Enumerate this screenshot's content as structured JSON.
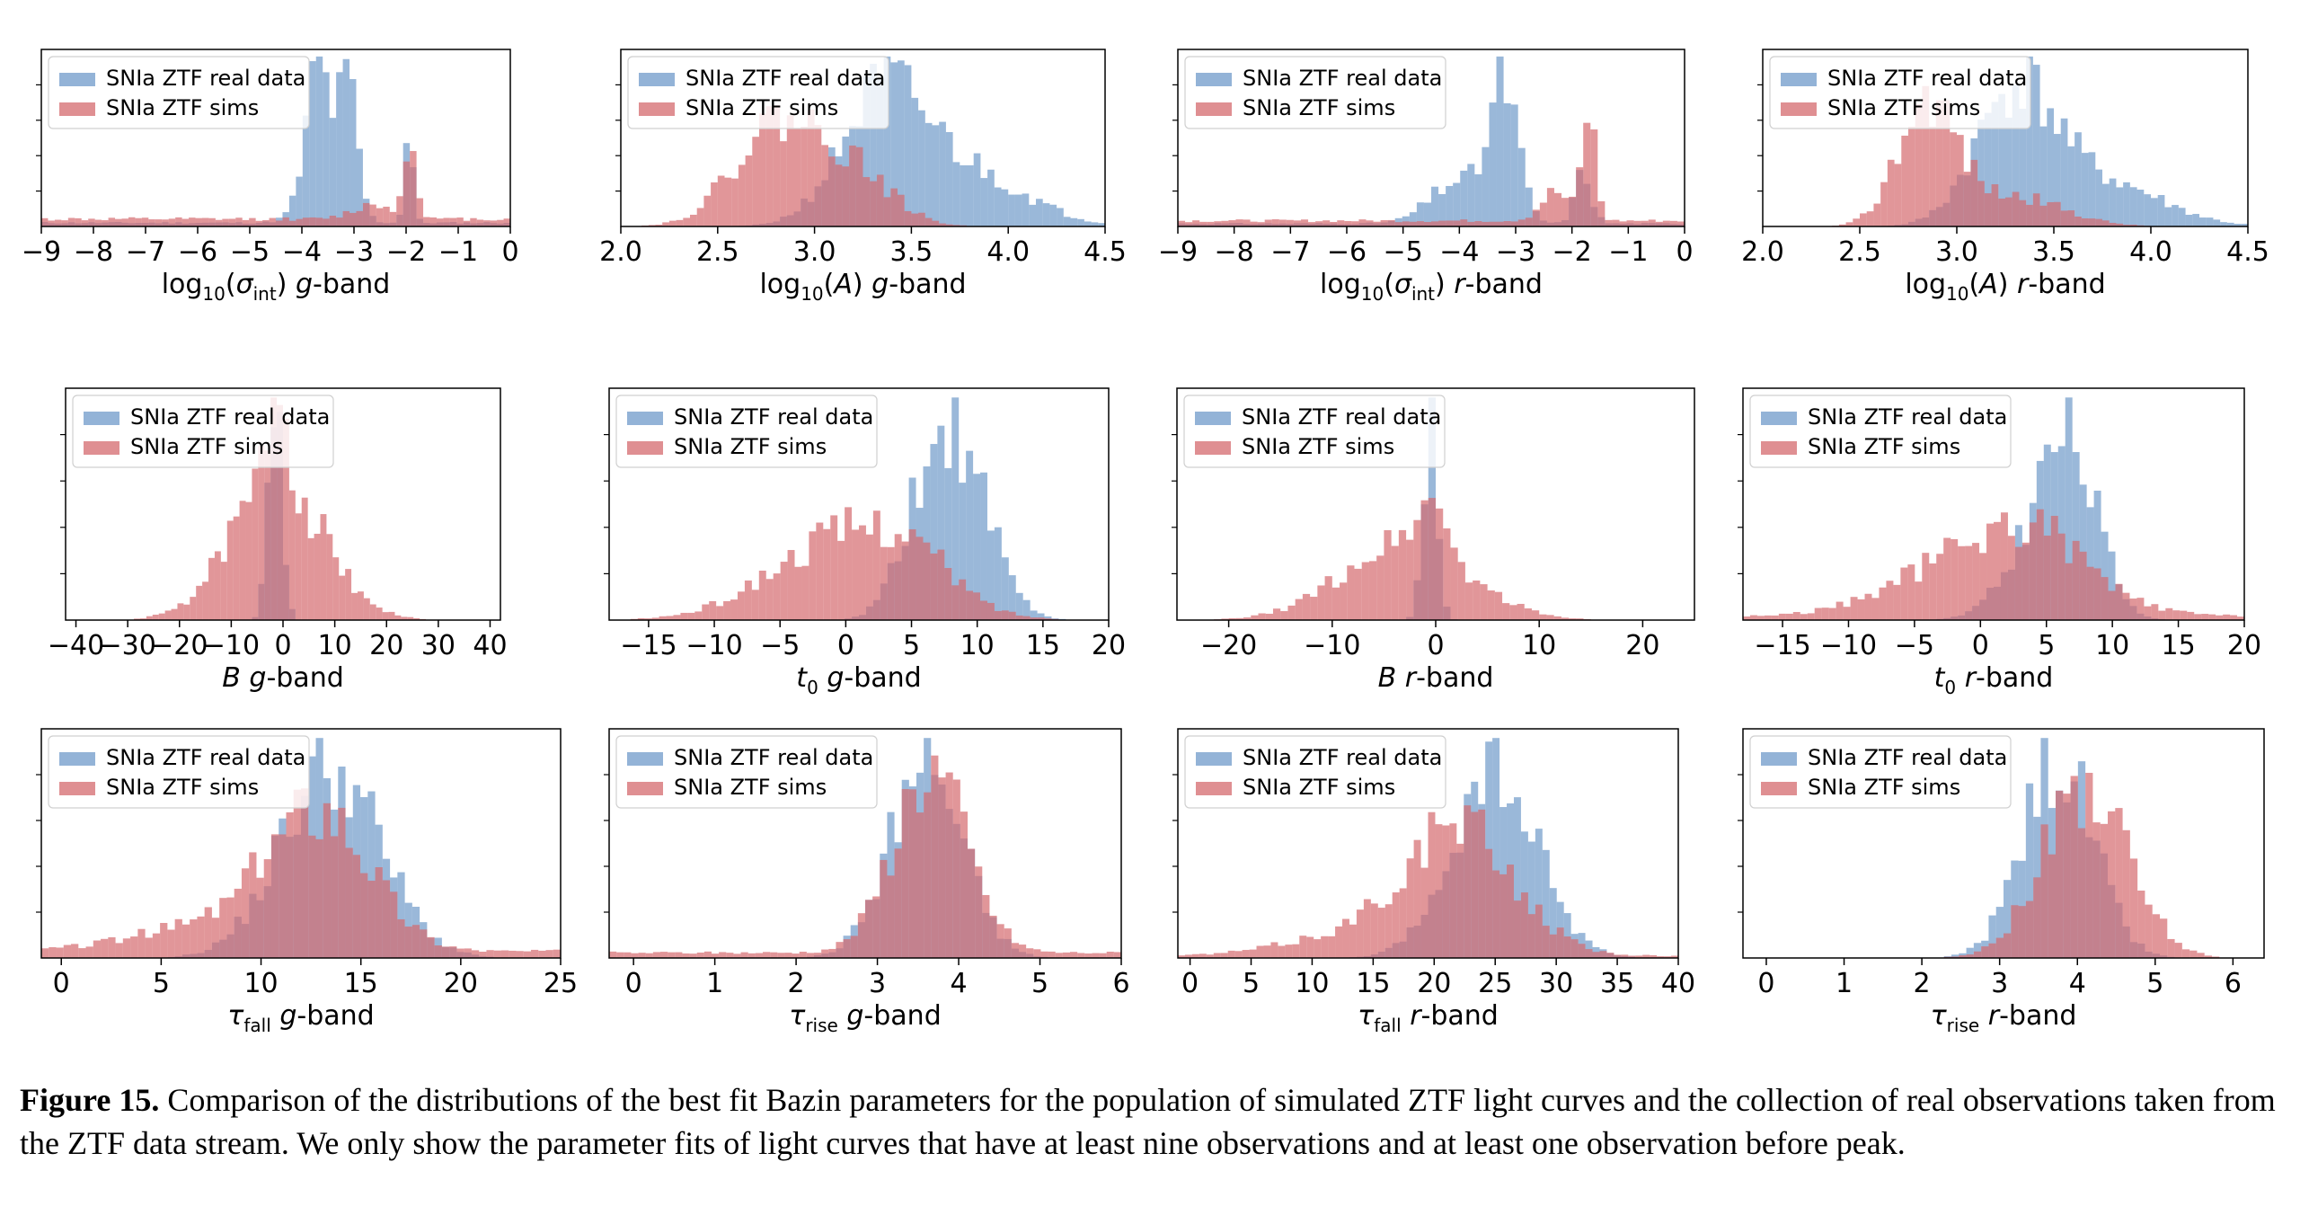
{
  "figure": {
    "caption_label": "Figure 15.",
    "caption_text": " Comparison of the distributions of the best fit Bazin parameters for the population of simulated ZTF light curves and the collection of real observations taken from the ZTF data stream. We only show the parameter fits of light curves that have at least nine observations and at least one observation before peak."
  },
  "colors": {
    "real": "#6f9ac9",
    "sims": "#d46a6e"
  },
  "chart_data": [
    {
      "type": "histogram",
      "xlabel": "log10(σint) g-band",
      "xlim": [
        -9,
        0
      ],
      "ticks": [
        -9,
        -8,
        -7,
        -6,
        -5,
        -4,
        -3,
        -2,
        -1,
        0
      ],
      "tick_labels": [
        "−9",
        "−8",
        "−7",
        "−6",
        "−5",
        "−4",
        "−3",
        "−2",
        "−1",
        "0"
      ],
      "legend": [
        "SNIa ZTF real data",
        "SNIa ZTF sims"
      ],
      "series": [
        {
          "name": "SNIa ZTF real data",
          "peaks": [
            [
              -3.6,
              0.55,
              0.35
            ],
            [
              -3.1,
              0.95,
              0.18
            ],
            [
              -3.7,
              0.75,
              0.2
            ],
            [
              -1.95,
              0.8,
              0.08
            ]
          ],
          "floor": 0.03,
          "seed": 11
        },
        {
          "name": "SNIa ZTF sims",
          "peaks": [
            [
              -1.9,
              0.6,
              0.12
            ],
            [
              -2.6,
              0.12,
              0.4
            ]
          ],
          "floor": 0.06,
          "seed": 12
        }
      ]
    },
    {
      "type": "histogram",
      "xlabel": "log10(A) g-band",
      "xlim": [
        2.0,
        4.5
      ],
      "ticks": [
        2.0,
        2.5,
        3.0,
        3.5,
        4.0,
        4.5
      ],
      "tick_labels": [
        "2.0",
        "2.5",
        "3.0",
        "3.5",
        "4.0",
        "4.5"
      ],
      "legend": [
        "SNIa ZTF real data",
        "SNIa ZTF sims"
      ],
      "series": [
        {
          "name": "SNIa ZTF real data",
          "peaks": [
            [
              3.35,
              0.85,
              0.22
            ],
            [
              3.8,
              0.35,
              0.3
            ]
          ],
          "floor": 0.0,
          "seed": 21
        },
        {
          "name": "SNIa ZTF sims",
          "peaks": [
            [
              2.8,
              0.68,
              0.22
            ],
            [
              3.2,
              0.35,
              0.2
            ]
          ],
          "floor": 0.0,
          "seed": 22
        }
      ]
    },
    {
      "type": "histogram",
      "xlabel": "log10(σint) r-band",
      "xlim": [
        -9,
        0
      ],
      "ticks": [
        -9,
        -8,
        -7,
        -6,
        -5,
        -4,
        -3,
        -2,
        -1,
        0
      ],
      "tick_labels": [
        "−9",
        "−8",
        "−7",
        "−6",
        "−5",
        "−4",
        "−3",
        "−2",
        "−1",
        "0"
      ],
      "legend": [
        "SNIa ZTF real data",
        "SNIa ZTF sims"
      ],
      "series": [
        {
          "name": "SNIa ZTF real data",
          "peaks": [
            [
              -3.2,
              0.9,
              0.25
            ],
            [
              -4.0,
              0.3,
              0.5
            ],
            [
              -1.8,
              0.35,
              0.15
            ]
          ],
          "floor": 0.02,
          "seed": 31
        },
        {
          "name": "SNIa ZTF sims",
          "peaks": [
            [
              -1.7,
              0.75,
              0.12
            ],
            [
              -2.3,
              0.2,
              0.25
            ]
          ],
          "floor": 0.04,
          "seed": 32
        }
      ]
    },
    {
      "type": "histogram",
      "xlabel": "log10(A) r-band",
      "xlim": [
        2.0,
        4.5
      ],
      "ticks": [
        2.0,
        2.5,
        3.0,
        3.5,
        4.0,
        4.5
      ],
      "tick_labels": [
        "2.0",
        "2.5",
        "3.0",
        "3.5",
        "4.0",
        "4.5"
      ],
      "legend": [
        "SNIa ZTF real data",
        "SNIa ZTF sims"
      ],
      "series": [
        {
          "name": "SNIa ZTF real data",
          "peaks": [
            [
              3.3,
              0.9,
              0.2
            ],
            [
              3.75,
              0.3,
              0.3
            ]
          ],
          "floor": 0.0,
          "seed": 41
        },
        {
          "name": "SNIa ZTF sims",
          "peaks": [
            [
              2.85,
              0.85,
              0.15
            ],
            [
              3.3,
              0.2,
              0.25
            ]
          ],
          "floor": 0.0,
          "seed": 42
        }
      ]
    },
    {
      "type": "histogram",
      "xlabel": "B g-band",
      "xlim": [
        -42,
        42
      ],
      "ticks": [
        -40,
        -30,
        -20,
        -10,
        0,
        10,
        20,
        30,
        40
      ],
      "tick_labels": [
        "−40",
        "−30",
        "−20",
        "−10",
        "0",
        "10",
        "20",
        "30",
        "40"
      ],
      "legend": [
        "SNIa ZTF real data",
        "SNIa ZTF sims"
      ],
      "series": [
        {
          "name": "SNIa ZTF real data",
          "peaks": [
            [
              -1.5,
              1.0,
              1.3
            ]
          ],
          "floor": 0.0,
          "seed": 51
        },
        {
          "name": "SNIa ZTF sims",
          "peaks": [
            [
              -1,
              0.55,
              9
            ],
            [
              -1,
              0.4,
              2
            ]
          ],
          "floor": 0.0,
          "seed": 52
        }
      ]
    },
    {
      "type": "histogram",
      "xlabel": "t0 g-band",
      "xlim": [
        -18,
        20
      ],
      "ticks": [
        -15,
        -10,
        -5,
        0,
        5,
        10,
        15,
        20
      ],
      "tick_labels": [
        "−15",
        "−10",
        "−5",
        "0",
        "5",
        "10",
        "15",
        "20"
      ],
      "legend": [
        "SNIa ZTF real data",
        "SNIa ZTF sims"
      ],
      "series": [
        {
          "name": "SNIa ZTF real data",
          "peaks": [
            [
              8.5,
              0.8,
              2.5
            ],
            [
              6,
              0.3,
              2
            ]
          ],
          "floor": 0.0,
          "seed": 61
        },
        {
          "name": "SNIa ZTF sims",
          "peaks": [
            [
              0,
              0.42,
              5.5
            ],
            [
              5,
              0.15,
              3
            ]
          ],
          "floor": 0.0,
          "seed": 62
        }
      ]
    },
    {
      "type": "histogram",
      "xlabel": "B r-band",
      "xlim": [
        -25,
        25
      ],
      "ticks": [
        -20,
        -10,
        0,
        10,
        20
      ],
      "tick_labels": [
        "−20",
        "−10",
        "0",
        "10",
        "20"
      ],
      "legend": [
        "SNIa ZTF real data",
        "SNIa ZTF sims"
      ],
      "series": [
        {
          "name": "SNIa ZTF real data",
          "peaks": [
            [
              -0.5,
              1.0,
              0.7
            ]
          ],
          "floor": 0.0,
          "seed": 71
        },
        {
          "name": "SNIa ZTF sims",
          "peaks": [
            [
              -3,
              0.4,
              6
            ],
            [
              -0.5,
              0.25,
              1.5
            ]
          ],
          "floor": 0.0,
          "seed": 72
        }
      ]
    },
    {
      "type": "histogram",
      "xlabel": "t0 r-band",
      "xlim": [
        -18,
        20
      ],
      "ticks": [
        -15,
        -10,
        -5,
        0,
        5,
        10,
        15,
        20
      ],
      "tick_labels": [
        "−15",
        "−10",
        "−5",
        "0",
        "5",
        "10",
        "15",
        "20"
      ],
      "legend": [
        "SNIa ZTF real data",
        "SNIa ZTF sims"
      ],
      "series": [
        {
          "name": "SNIa ZTF real data",
          "peaks": [
            [
              6.8,
              0.85,
              2.2
            ],
            [
              4,
              0.3,
              2.5
            ]
          ],
          "floor": 0.0,
          "seed": 81
        },
        {
          "name": "SNIa ZTF sims",
          "peaks": [
            [
              1,
              0.42,
              6
            ],
            [
              5,
              0.15,
              3
            ]
          ],
          "floor": 0.02,
          "seed": 82
        }
      ]
    },
    {
      "type": "histogram",
      "xlabel": "τfall g-band",
      "xlim": [
        -1,
        25
      ],
      "ticks": [
        0,
        5,
        10,
        15,
        20,
        25
      ],
      "tick_labels": [
        "0",
        "5",
        "10",
        "15",
        "20",
        "25"
      ],
      "legend": [
        "SNIa ZTF real data",
        "SNIa ZTF sims"
      ],
      "series": [
        {
          "name": "SNIa ZTF real data",
          "peaks": [
            [
              13.5,
              0.85,
              2.5
            ]
          ],
          "floor": 0.0,
          "seed": 91
        },
        {
          "name": "SNIa ZTF sims",
          "peaks": [
            [
              13,
              0.6,
              2.5
            ],
            [
              8,
              0.12,
              4
            ]
          ],
          "floor": 0.03,
          "seed": 92
        }
      ]
    },
    {
      "type": "histogram",
      "xlabel": "τrise g-band",
      "xlim": [
        -0.3,
        6
      ],
      "ticks": [
        0,
        1,
        2,
        3,
        4,
        5,
        6
      ],
      "tick_labels": [
        "0",
        "1",
        "2",
        "3",
        "4",
        "5",
        "6"
      ],
      "legend": [
        "SNIa ZTF real data",
        "SNIa ZTF sims"
      ],
      "series": [
        {
          "name": "SNIa ZTF real data",
          "peaks": [
            [
              3.6,
              0.75,
              0.45
            ]
          ],
          "floor": 0.0,
          "seed": 101
        },
        {
          "name": "SNIa ZTF sims",
          "peaks": [
            [
              3.65,
              0.7,
              0.45
            ]
          ],
          "floor": 0.02,
          "seed": 102
        }
      ]
    },
    {
      "type": "histogram",
      "xlabel": "τfall r-band",
      "xlim": [
        -1,
        40
      ],
      "ticks": [
        0,
        5,
        10,
        15,
        20,
        25,
        30,
        35,
        40
      ],
      "tick_labels": [
        "0",
        "5",
        "10",
        "15",
        "20",
        "25",
        "30",
        "35",
        "40"
      ],
      "legend": [
        "SNIa ZTF real data",
        "SNIa ZTF sims"
      ],
      "series": [
        {
          "name": "SNIa ZTF real data",
          "peaks": [
            [
              25,
              0.85,
              3.5
            ]
          ],
          "floor": 0.0,
          "seed": 111
        },
        {
          "name": "SNIa ZTF sims",
          "peaks": [
            [
              22,
              0.6,
              4.5
            ],
            [
              12,
              0.08,
              5
            ]
          ],
          "floor": 0.01,
          "seed": 112
        }
      ]
    },
    {
      "type": "histogram",
      "xlabel": "τrise r-band",
      "xlim": [
        -0.3,
        6.4
      ],
      "ticks": [
        0,
        1,
        2,
        3,
        4,
        5,
        6
      ],
      "tick_labels": [
        "0",
        "1",
        "2",
        "3",
        "4",
        "5",
        "6"
      ],
      "legend": [
        "SNIa ZTF real data",
        "SNIa ZTF sims"
      ],
      "series": [
        {
          "name": "SNIa ZTF real data",
          "peaks": [
            [
              3.75,
              0.85,
              0.45
            ]
          ],
          "floor": 0.0,
          "seed": 121
        },
        {
          "name": "SNIa ZTF sims",
          "peaks": [
            [
              4.1,
              0.72,
              0.55
            ]
          ],
          "floor": 0.0,
          "seed": 122
        }
      ]
    }
  ]
}
